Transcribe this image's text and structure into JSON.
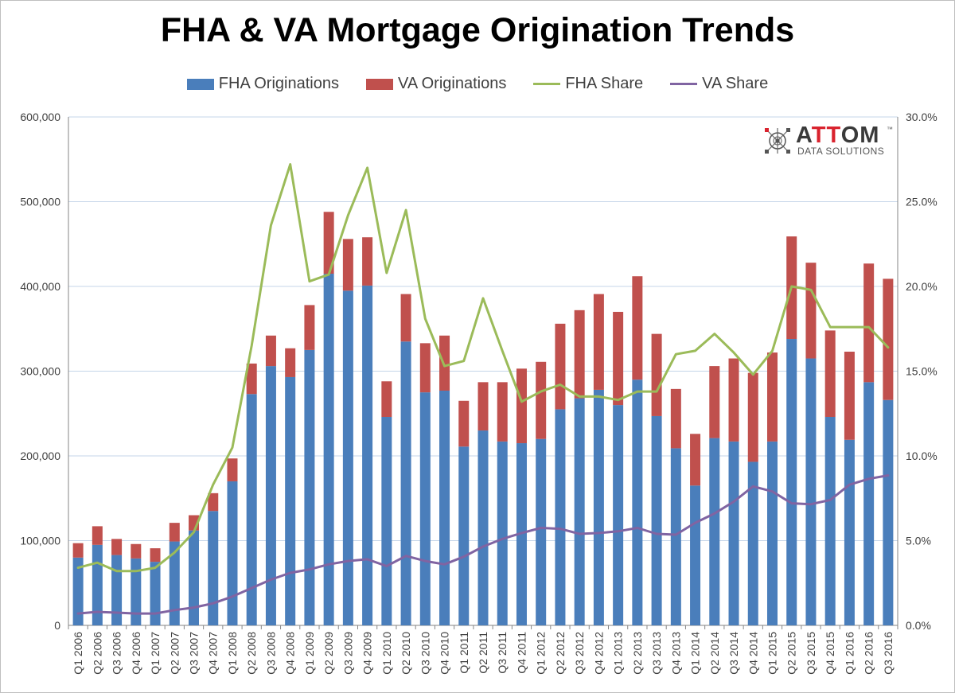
{
  "chart_data": {
    "type": "bar",
    "title": "FHA & VA Mortgage Origination Trends",
    "xlabel": "",
    "ylabel": "",
    "y2label": "",
    "ylim": [
      0,
      600000
    ],
    "y2lim": [
      0.0,
      30.0
    ],
    "y_ticks": [
      "0",
      "100,000",
      "200,000",
      "300,000",
      "400,000",
      "500,000",
      "600,000"
    ],
    "y2_ticks": [
      "0.0%",
      "5.0%",
      "10.0%",
      "15.0%",
      "20.0%",
      "25.0%",
      "30.0%"
    ],
    "grid": true,
    "legend_position": "top",
    "categories": [
      "Q1 2006",
      "Q2 2006",
      "Q3 2006",
      "Q4 2006",
      "Q1 2007",
      "Q2 2007",
      "Q3 2007",
      "Q4 2007",
      "Q1 2008",
      "Q2 2008",
      "Q3 2008",
      "Q4 2008",
      "Q1 2009",
      "Q2 2009",
      "Q3 2009",
      "Q4 2009",
      "Q1 2010",
      "Q2 2010",
      "Q3 2010",
      "Q4 2010",
      "Q1 2011",
      "Q2 2011",
      "Q3 2011",
      "Q4 2011",
      "Q1 2012",
      "Q2 2012",
      "Q3 2012",
      "Q4 2012",
      "Q1 2013",
      "Q2 2013",
      "Q3 2013",
      "Q4 2013",
      "Q1 2014",
      "Q2 2014",
      "Q3 2014",
      "Q4 2014",
      "Q1 2015",
      "Q2 2015",
      "Q3 2015",
      "Q4 2015",
      "Q1 2016",
      "Q2 2016",
      "Q3 2016"
    ],
    "series": [
      {
        "name": "FHA Originations",
        "kind": "stacked-bar",
        "axis": "left",
        "color": "#4a7ebb",
        "values": [
          80000,
          95000,
          83000,
          79000,
          75000,
          99000,
          112000,
          135000,
          170000,
          273000,
          306000,
          293000,
          325000,
          415000,
          395000,
          401000,
          246000,
          335000,
          275000,
          277000,
          211000,
          230000,
          217000,
          215000,
          220000,
          255000,
          268000,
          278000,
          260000,
          290000,
          247000,
          209000,
          165000,
          221000,
          217000,
          193000,
          217000,
          338000,
          315000,
          246000,
          219000,
          287000,
          266000
        ]
      },
      {
        "name": "VA Originations",
        "kind": "stacked-bar",
        "axis": "left",
        "color": "#c0504d",
        "values": [
          17000,
          22000,
          19000,
          17000,
          16000,
          22000,
          18000,
          21000,
          27000,
          36000,
          36000,
          34000,
          53000,
          73000,
          61000,
          57000,
          42000,
          56000,
          58000,
          65000,
          54000,
          57000,
          70000,
          88000,
          91000,
          101000,
          104000,
          113000,
          110000,
          122000,
          97000,
          70000,
          61000,
          85000,
          98000,
          105000,
          105000,
          121000,
          113000,
          102000,
          104000,
          140000,
          143000
        ]
      },
      {
        "name": "FHA Share",
        "kind": "line",
        "axis": "right",
        "color": "#9bbb59",
        "values": [
          3.4,
          3.7,
          3.2,
          3.2,
          3.4,
          4.3,
          5.5,
          8.3,
          10.5,
          16.5,
          23.6,
          27.2,
          20.3,
          20.7,
          24.2,
          27.0,
          20.8,
          24.5,
          18.1,
          15.3,
          15.6,
          19.3,
          16.2,
          13.2,
          13.8,
          14.2,
          13.5,
          13.5,
          13.3,
          13.8,
          13.8,
          16.0,
          16.2,
          17.2,
          16.1,
          14.8,
          16.2,
          20.0,
          19.8,
          17.6,
          17.6,
          17.6,
          16.4
        ]
      },
      {
        "name": "VA Share",
        "kind": "line",
        "axis": "right",
        "color": "#8064a2",
        "values": [
          0.7,
          0.8,
          0.75,
          0.7,
          0.7,
          0.9,
          1.05,
          1.3,
          1.7,
          2.2,
          2.7,
          3.1,
          3.3,
          3.6,
          3.8,
          3.9,
          3.5,
          4.1,
          3.8,
          3.6,
          4.05,
          4.65,
          5.1,
          5.45,
          5.75,
          5.7,
          5.4,
          5.45,
          5.55,
          5.75,
          5.4,
          5.35,
          6.05,
          6.6,
          7.3,
          8.2,
          7.9,
          7.2,
          7.15,
          7.4,
          8.3,
          8.65,
          8.85
        ]
      }
    ]
  },
  "logo": {
    "name_prefix": "A",
    "name_highlight": "TT",
    "name_suffix": "OM",
    "tm": "™",
    "subtitle": "DATA SOLUTIONS"
  }
}
